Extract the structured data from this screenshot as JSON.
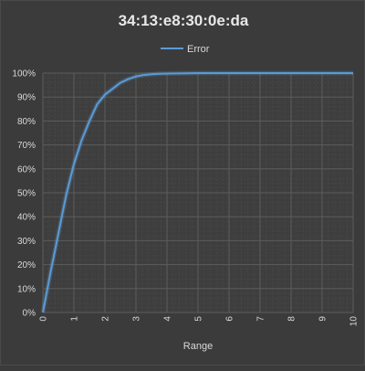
{
  "chart_data": {
    "type": "line",
    "title": "34:13:e8:30:0e:da",
    "xlabel": "Range",
    "ylabel": "",
    "xlim": [
      0,
      10
    ],
    "ylim": [
      0,
      100
    ],
    "x_ticks": [
      "0",
      "1",
      "2",
      "3",
      "4",
      "5",
      "6",
      "7",
      "8",
      "9",
      "10"
    ],
    "y_ticks": [
      "0%",
      "10%",
      "20%",
      "30%",
      "40%",
      "50%",
      "60%",
      "70%",
      "80%",
      "90%",
      "100%"
    ],
    "grid": true,
    "legend_position": "top",
    "series": [
      {
        "name": "Error",
        "color": "#5b9bd5",
        "x": [
          0,
          0.25,
          0.5,
          0.75,
          1,
          1.25,
          1.5,
          1.75,
          2,
          2.25,
          2.5,
          2.75,
          3,
          3.25,
          3.5,
          3.75,
          4,
          4.5,
          5,
          6,
          7,
          8,
          9,
          10
        ],
        "y": [
          0,
          17,
          33,
          49,
          62,
          72,
          80,
          87,
          91,
          93.5,
          96,
          97.5,
          98.6,
          99.2,
          99.5,
          99.7,
          99.8,
          99.9,
          100,
          100,
          100,
          100,
          100,
          100
        ]
      }
    ]
  }
}
